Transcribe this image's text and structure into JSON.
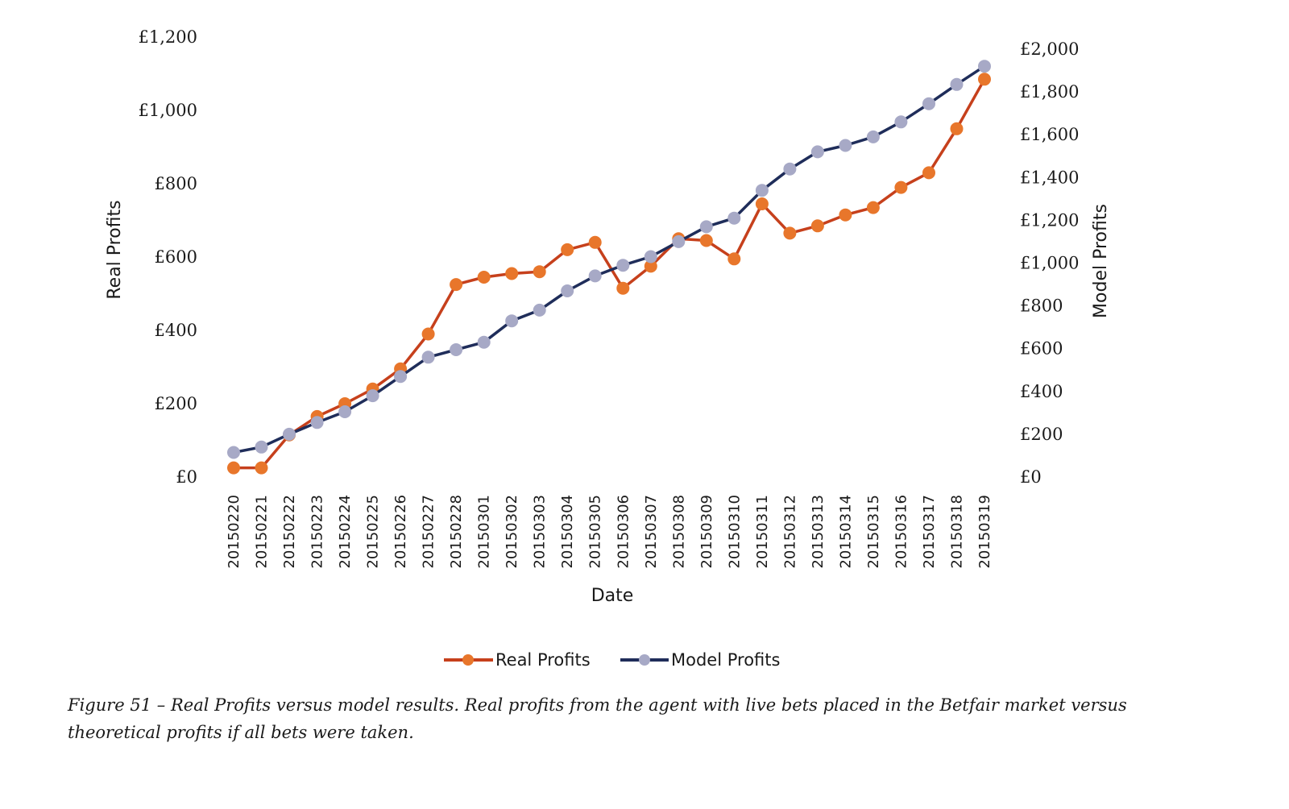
{
  "caption": "Figure 51 – Real Profits versus model results. Real profits from the agent with live bets placed in the Betfair market versus theoretical profits if all bets were taken.",
  "chart_data": {
    "type": "line",
    "xlabel": "Date",
    "ylabel_left": "Real Profits",
    "ylabel_right": "Model Profits",
    "categories": [
      "20150220",
      "20150221",
      "20150222",
      "20150223",
      "20150224",
      "20150225",
      "20150226",
      "20150227",
      "20150228",
      "20150301",
      "20150302",
      "20150303",
      "20150304",
      "20150305",
      "20150306",
      "20150307",
      "20150308",
      "20150309",
      "20150310",
      "20150311",
      "20150312",
      "20150313",
      "20150314",
      "20150315",
      "20150316",
      "20150317",
      "20150318",
      "20150319"
    ],
    "left_axis": {
      "range": [
        0,
        1200
      ],
      "ticks": [
        0,
        200,
        400,
        600,
        800,
        1000,
        1200
      ],
      "tick_labels": [
        "£0",
        "£200",
        "£400",
        "£600",
        "£800",
        "£1,000",
        "£1,200"
      ]
    },
    "right_axis": {
      "range": [
        0,
        2000
      ],
      "ticks": [
        0,
        200,
        400,
        600,
        800,
        1000,
        1200,
        1400,
        1600,
        1800,
        2000
      ],
      "tick_labels": [
        "£0",
        "£200",
        "£400",
        "£600",
        "£800",
        "£1,000",
        "£1,200",
        "£1,400",
        "£1,600",
        "£1,800",
        "£2,000"
      ]
    },
    "series": [
      {
        "name": "Real Profits",
        "axis": "left",
        "color": "#E8762B",
        "line_color": "#C6401C",
        "values": [
          25,
          25,
          115,
          165,
          200,
          240,
          295,
          390,
          525,
          545,
          555,
          560,
          620,
          640,
          515,
          575,
          650,
          645,
          595,
          745,
          665,
          685,
          715,
          735,
          790,
          830,
          950,
          1085
        ]
      },
      {
        "name": "Model Profits",
        "axis": "right",
        "color": "#A7A9C6",
        "line_color": "#1F2D5A",
        "values": [
          115,
          140,
          200,
          255,
          305,
          380,
          470,
          560,
          595,
          630,
          730,
          780,
          870,
          940,
          990,
          1030,
          1100,
          1170,
          1210,
          1340,
          1440,
          1520,
          1550,
          1590,
          1660,
          1745,
          1835,
          1920
        ]
      }
    ],
    "legend": {
      "position": "bottom-center",
      "entries": [
        "Real Profits",
        "Model Profits"
      ]
    },
    "grid": false
  }
}
